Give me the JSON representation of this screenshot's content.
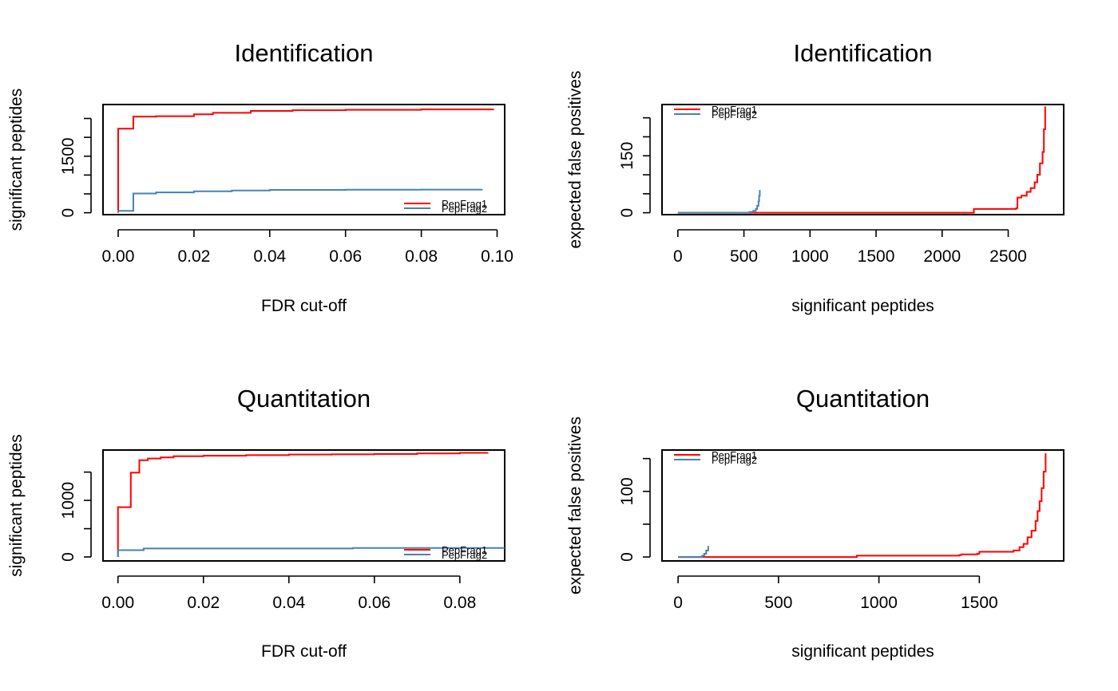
{
  "colors": {
    "PepFrag1": "#ff0000",
    "PepFrag2": "#4682b4"
  },
  "chart_data": [
    {
      "type": "line",
      "title": "Identification",
      "xlabel": "FDR cut-off",
      "ylabel": "significant peptides",
      "xlim": [
        -0.004,
        0.102
      ],
      "ylim": [
        -50,
        2870
      ],
      "x_ticks": [
        0.0,
        0.02,
        0.04,
        0.06,
        0.08,
        0.1
      ],
      "x_tick_labels": [
        "0.00",
        "0.02",
        "0.04",
        "0.06",
        "0.08",
        "0.10"
      ],
      "y_ticks": [
        0,
        500,
        1000,
        1500,
        2000,
        2500
      ],
      "y_tick_labels": [
        "0",
        "",
        "",
        "1500",
        "",
        ""
      ],
      "legend": {
        "position": "bottom-right",
        "entries": [
          "PepFrag1",
          "PepFrag2"
        ]
      },
      "series": [
        {
          "name": "PepFrag1",
          "step": true,
          "x": [
            0.0,
            0.0,
            0.004,
            0.004,
            0.01,
            0.02,
            0.025,
            0.035,
            0.046,
            0.06,
            0.08,
            0.099
          ],
          "y": [
            0,
            2230,
            2230,
            2550,
            2560,
            2610,
            2650,
            2700,
            2720,
            2730,
            2740,
            2750
          ]
        },
        {
          "name": "PepFrag2",
          "step": true,
          "x": [
            0.0,
            0.0,
            0.004,
            0.004,
            0.01,
            0.02,
            0.03,
            0.04,
            0.06,
            0.08,
            0.096
          ],
          "y": [
            0,
            50,
            50,
            510,
            540,
            570,
            590,
            605,
            610,
            615,
            625
          ]
        }
      ]
    },
    {
      "type": "line",
      "title": "Identification",
      "xlabel": "significant peptides",
      "ylabel": "expected false positives",
      "xlim": [
        -120,
        2920
      ],
      "ylim": [
        -5,
        285
      ],
      "x_ticks": [
        0,
        500,
        1000,
        1500,
        2000,
        2500
      ],
      "x_tick_labels": [
        "0",
        "500",
        "1000",
        "1500",
        "2000",
        "2500"
      ],
      "y_ticks": [
        0,
        50,
        100,
        150,
        200,
        250
      ],
      "y_tick_labels": [
        "0",
        "",
        "",
        "150",
        "",
        ""
      ],
      "legend": {
        "position": "top-left",
        "entries": [
          "PepFrag1",
          "PepFrag2"
        ]
      },
      "series": [
        {
          "name": "PepFrag1",
          "step": true,
          "x": [
            0,
            2230,
            2240,
            2560,
            2570,
            2600,
            2640,
            2670,
            2700,
            2720,
            2740,
            2760,
            2770,
            2780
          ],
          "y": [
            0,
            0,
            10,
            12,
            40,
            45,
            55,
            65,
            80,
            100,
            130,
            160,
            220,
            280
          ]
        },
        {
          "name": "PepFrag2",
          "step": true,
          "x": [
            0,
            500,
            540,
            570,
            590,
            600,
            610,
            615,
            620
          ],
          "y": [
            0,
            0,
            2,
            5,
            10,
            18,
            30,
            45,
            60
          ]
        }
      ]
    },
    {
      "type": "line",
      "title": "Quantitation",
      "xlabel": "FDR cut-off",
      "ylabel": "significant peptides",
      "xlim": [
        -0.0035,
        0.0905
      ],
      "ylim": [
        -70,
        1890
      ],
      "x_ticks": [
        0.0,
        0.02,
        0.04,
        0.06,
        0.08
      ],
      "x_tick_labels": [
        "0.00",
        "0.02",
        "0.04",
        "0.06",
        "0.08"
      ],
      "y_ticks": [
        0,
        500,
        1000,
        1500
      ],
      "y_tick_labels": [
        "0",
        "",
        "1000",
        ""
      ],
      "legend": {
        "position": "bottom-right",
        "entries": [
          "PepFrag1",
          "PepFrag2"
        ]
      },
      "series": [
        {
          "name": "PepFrag1",
          "step": true,
          "x": [
            0.0,
            0.0,
            0.003,
            0.003,
            0.005,
            0.005,
            0.007,
            0.01,
            0.013,
            0.02,
            0.03,
            0.04,
            0.05,
            0.06,
            0.07,
            0.08,
            0.0865
          ],
          "y": [
            0,
            880,
            880,
            1490,
            1490,
            1710,
            1740,
            1760,
            1780,
            1790,
            1800,
            1810,
            1815,
            1820,
            1830,
            1840,
            1850
          ]
        },
        {
          "name": "PepFrag2",
          "step": true,
          "x": [
            0.0,
            0.0,
            0.006,
            0.006,
            0.02,
            0.04,
            0.055,
            0.0905
          ],
          "y": [
            0,
            120,
            120,
            150,
            150,
            150,
            160,
            160
          ]
        }
      ]
    },
    {
      "type": "line",
      "title": "Quantitation",
      "xlabel": "significant peptides",
      "ylabel": "expected false positives",
      "xlim": [
        -80,
        1920
      ],
      "ylim": [
        -6,
        163
      ],
      "x_ticks": [
        0,
        500,
        1000,
        1500
      ],
      "x_tick_labels": [
        "0",
        "500",
        "1000",
        "1500"
      ],
      "y_ticks": [
        0,
        50,
        100,
        150
      ],
      "y_tick_labels": [
        "0",
        "",
        "100",
        ""
      ],
      "legend": {
        "position": "top-left",
        "entries": [
          "PepFrag1",
          "PepFrag2"
        ]
      },
      "series": [
        {
          "name": "PepFrag1",
          "step": true,
          "x": [
            0,
            880,
            890,
            1400,
            1410,
            1490,
            1500,
            1670,
            1700,
            1720,
            1740,
            1760,
            1780,
            1790,
            1800,
            1810,
            1820,
            1830
          ],
          "y": [
            0,
            0,
            2,
            3,
            4,
            5,
            8,
            10,
            15,
            20,
            30,
            40,
            55,
            70,
            85,
            105,
            130,
            158
          ]
        },
        {
          "name": "PepFrag2",
          "step": true,
          "x": [
            0,
            110,
            120,
            130,
            140,
            150
          ],
          "y": [
            0,
            0,
            2,
            5,
            10,
            17
          ]
        }
      ]
    }
  ]
}
